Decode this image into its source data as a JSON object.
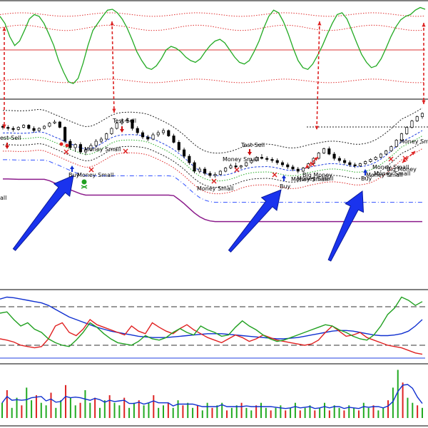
{
  "colors": {
    "background": "#ffffff",
    "oscillator_line": "#22aa22",
    "oscillator_bands": "#e03030",
    "oscillator_mid": "#dd3333",
    "band_dotted": "#222222",
    "band_blue": "#2040e0",
    "band_green": "#22aa22",
    "band_red": "#dd2222",
    "support_blue": "#3050ff",
    "support_purple": "#8b1a8b",
    "divergence_arrow": "#dd2222",
    "big_arrow": "#1a33ee",
    "panel_border": "#000000",
    "stoch_blue": "#1030d0",
    "stoch_red": "#e02020",
    "stoch_green": "#20a020",
    "volume_up": "#22aa22",
    "volume_down": "#dd2222",
    "volume_avg": "#1030d0"
  },
  "icons": {
    "buy_arrow": "up-arrow-icon",
    "sell_arrow": "down-arrow-icon",
    "skull": "skull-icon",
    "money_cross": "cross-icon",
    "big_arrow": "big-pointer-arrow-icon"
  },
  "annotations": [
    {
      "text": "est-Sell",
      "kind": "sell"
    },
    {
      "text": "Test-Sell",
      "kind": "sell"
    },
    {
      "text": "Money Small",
      "kind": "money"
    },
    {
      "text": "Buy",
      "kind": "buy"
    },
    {
      "text": "Money Small",
      "kind": "money"
    },
    {
      "text": "Money Small",
      "kind": "money"
    },
    {
      "text": "Money Small",
      "kind": "money"
    },
    {
      "text": "Test-Sell",
      "kind": "sell"
    },
    {
      "text": "Money Small",
      "kind": "money"
    },
    {
      "text": "Big Money",
      "kind": "money"
    },
    {
      "text": "Money Small",
      "kind": "money"
    },
    {
      "text": "Buy",
      "kind": "buy"
    },
    {
      "text": "Money Small",
      "kind": "money"
    },
    {
      "text": "Money Small",
      "kind": "money"
    },
    {
      "text": "Buy",
      "kind": "buy"
    },
    {
      "text": "Money Small",
      "kind": "money"
    },
    {
      "text": "Big Money",
      "kind": "money"
    },
    {
      "text": "Money Sma",
      "kind": "money"
    },
    {
      "text": "all",
      "kind": "money"
    }
  ],
  "chart_data": [
    {
      "panel": "oscillator",
      "type": "line",
      "ylim": [
        0,
        100
      ],
      "grid": false,
      "levels": [
        15,
        50,
        75,
        90
      ],
      "series": [
        {
          "values": [
            88,
            80,
            65,
            55,
            60,
            72,
            85,
            90,
            88,
            80,
            68,
            55,
            38,
            25,
            14,
            12,
            18,
            35,
            55,
            72,
            80,
            88,
            95,
            96,
            92,
            85,
            75,
            62,
            48,
            38,
            30,
            28,
            32,
            40,
            50,
            54,
            52,
            48,
            42,
            38,
            36,
            40,
            48,
            55,
            60,
            62,
            58,
            50,
            42,
            36,
            34,
            38,
            48,
            60,
            75,
            88,
            95,
            92,
            82,
            68,
            52,
            38,
            30,
            28,
            34,
            44,
            55,
            68,
            80,
            90,
            92,
            85,
            72,
            58,
            45,
            36,
            30,
            32,
            40,
            52,
            65,
            76,
            84,
            88,
            90,
            95,
            98,
            96
          ]
        }
      ]
    },
    {
      "panel": "price",
      "type": "candlestick",
      "ylim": [
        0,
        100
      ],
      "grid": false,
      "candles": [
        [
          82,
          84,
          79,
          81
        ],
        [
          81,
          83,
          78,
          80
        ],
        [
          80,
          82,
          77,
          79
        ],
        [
          79,
          82,
          78,
          81
        ],
        [
          81,
          84,
          80,
          83
        ],
        [
          83,
          84,
          79,
          80
        ],
        [
          80,
          82,
          76,
          78
        ],
        [
          78,
          81,
          77,
          80
        ],
        [
          80,
          83,
          79,
          82
        ],
        [
          82,
          86,
          81,
          85
        ],
        [
          85,
          88,
          84,
          86
        ],
        [
          86,
          87,
          80,
          81
        ],
        [
          81,
          82,
          66,
          68
        ],
        [
          68,
          70,
          60,
          62
        ],
        [
          62,
          66,
          58,
          65
        ],
        [
          65,
          67,
          56,
          58
        ],
        [
          58,
          62,
          55,
          60
        ],
        [
          60,
          66,
          59,
          64
        ],
        [
          64,
          70,
          62,
          68
        ],
        [
          68,
          72,
          66,
          70
        ],
        [
          70,
          76,
          69,
          75
        ],
        [
          75,
          81,
          74,
          80
        ],
        [
          80,
          86,
          79,
          85
        ],
        [
          85,
          89,
          83,
          87
        ],
        [
          87,
          90,
          85,
          88
        ],
        [
          88,
          89,
          78,
          80
        ],
        [
          80,
          82,
          74,
          76
        ],
        [
          76,
          78,
          70,
          72
        ],
        [
          72,
          74,
          68,
          70
        ],
        [
          70,
          76,
          69,
          74
        ],
        [
          74,
          78,
          72,
          76
        ],
        [
          76,
          80,
          74,
          78
        ],
        [
          78,
          79,
          72,
          73
        ],
        [
          73,
          75,
          66,
          67
        ],
        [
          67,
          69,
          58,
          60
        ],
        [
          60,
          62,
          52,
          54
        ],
        [
          54,
          56,
          46,
          48
        ],
        [
          48,
          50,
          38,
          40
        ],
        [
          40,
          44,
          38,
          42
        ],
        [
          42,
          44,
          36,
          38
        ],
        [
          38,
          40,
          34,
          36
        ],
        [
          36,
          39,
          34,
          37
        ],
        [
          37,
          41,
          36,
          40
        ],
        [
          40,
          44,
          39,
          43
        ],
        [
          43,
          47,
          42,
          45
        ],
        [
          45,
          48,
          43,
          44
        ],
        [
          44,
          46,
          42,
          45
        ],
        [
          45,
          49,
          44,
          48
        ],
        [
          48,
          52,
          47,
          50
        ],
        [
          50,
          54,
          49,
          53
        ],
        [
          53,
          56,
          51,
          52
        ],
        [
          52,
          54,
          49,
          51
        ],
        [
          51,
          53,
          48,
          50
        ],
        [
          50,
          52,
          46,
          48
        ],
        [
          48,
          50,
          44,
          46
        ],
        [
          46,
          48,
          42,
          44
        ],
        [
          44,
          46,
          40,
          42
        ],
        [
          42,
          44,
          38,
          40
        ],
        [
          40,
          44,
          39,
          43
        ],
        [
          43,
          48,
          42,
          47
        ],
        [
          47,
          53,
          46,
          52
        ],
        [
          52,
          58,
          51,
          57
        ],
        [
          57,
          62,
          56,
          61
        ],
        [
          61,
          63,
          55,
          56
        ],
        [
          56,
          58,
          50,
          52
        ],
        [
          52,
          54,
          48,
          50
        ],
        [
          50,
          52,
          46,
          48
        ],
        [
          48,
          50,
          44,
          46
        ],
        [
          46,
          48,
          43,
          45
        ],
        [
          45,
          48,
          44,
          47
        ],
        [
          47,
          50,
          46,
          49
        ],
        [
          49,
          52,
          48,
          51
        ],
        [
          51,
          54,
          50,
          53
        ],
        [
          53,
          57,
          52,
          56
        ],
        [
          56,
          60,
          55,
          59
        ],
        [
          59,
          64,
          58,
          63
        ],
        [
          63,
          70,
          62,
          69
        ],
        [
          69,
          76,
          68,
          75
        ],
        [
          75,
          82,
          74,
          81
        ],
        [
          81,
          88,
          80,
          87
        ],
        [
          87,
          92,
          86,
          91
        ],
        [
          91,
          95,
          89,
          94
        ]
      ]
    },
    {
      "panel": "stochastic",
      "type": "line",
      "ylim": [
        0,
        100
      ],
      "grid": false,
      "levels": [
        20,
        80
      ],
      "series": [
        {
          "color_key": "stoch_blue",
          "values": [
            92,
            95,
            94,
            92,
            90,
            88,
            86,
            82,
            76,
            70,
            64,
            60,
            56,
            52,
            48,
            45,
            42,
            40,
            38,
            36,
            34,
            33,
            32,
            32,
            32,
            33,
            34,
            35,
            36,
            37,
            38,
            38,
            38,
            37,
            36,
            35,
            34,
            33,
            32,
            31,
            30,
            30,
            31,
            32,
            34,
            36,
            38,
            40,
            42,
            43,
            43,
            42,
            40,
            38,
            36,
            35,
            35,
            36,
            38,
            42,
            50,
            60
          ]
        },
        {
          "color_key": "stoch_red",
          "values": [
            30,
            28,
            25,
            20,
            18,
            16,
            18,
            30,
            50,
            55,
            40,
            35,
            45,
            60,
            52,
            48,
            44,
            40,
            36,
            50,
            42,
            38,
            55,
            48,
            42,
            38,
            46,
            52,
            44,
            38,
            32,
            28,
            24,
            30,
            36,
            32,
            26,
            30,
            36,
            32,
            28,
            26,
            24,
            22,
            20,
            22,
            28,
            40,
            50,
            42,
            34,
            36,
            40,
            32,
            28,
            24,
            20,
            18,
            16,
            12,
            8,
            6
          ]
        },
        {
          "color_key": "stoch_green",
          "values": [
            70,
            72,
            60,
            50,
            55,
            45,
            40,
            30,
            24,
            20,
            18,
            28,
            40,
            55,
            48,
            38,
            30,
            24,
            22,
            20,
            26,
            35,
            30,
            28,
            32,
            40,
            46,
            40,
            36,
            50,
            44,
            40,
            34,
            36,
            48,
            58,
            50,
            44,
            36,
            30,
            26,
            28,
            32,
            36,
            40,
            44,
            48,
            52,
            50,
            44,
            40,
            34,
            30,
            28,
            36,
            50,
            68,
            78,
            95,
            90,
            82,
            88
          ]
        }
      ]
    },
    {
      "panel": "volume",
      "type": "bar",
      "ylim": [
        0,
        100
      ],
      "grid": false,
      "series": [
        {
          "name_key": "volume",
          "values": [
            30,
            55,
            20,
            40,
            25,
            60,
            35,
            45,
            30,
            25,
            50,
            20,
            35,
            65,
            40,
            25,
            30,
            55,
            30,
            40,
            20,
            35,
            45,
            30,
            25,
            40,
            20,
            30,
            35,
            25,
            30,
            45,
            20,
            25,
            30,
            20,
            35,
            25,
            30,
            20,
            25,
            15,
            30,
            20,
            25,
            30,
            15,
            20,
            25,
            30,
            20,
            15,
            25,
            30,
            20,
            15,
            20,
            25,
            15,
            20,
            30,
            15,
            20,
            25,
            15,
            20,
            30,
            15,
            25,
            20,
            15,
            25,
            20,
            15,
            30,
            20,
            25,
            15,
            20,
            35,
            60,
            95,
            70,
            40,
            30,
            25,
            20
          ]
        }
      ]
    }
  ]
}
